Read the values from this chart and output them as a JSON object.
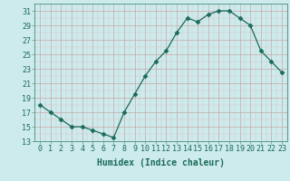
{
  "x": [
    0,
    1,
    2,
    3,
    4,
    5,
    6,
    7,
    8,
    9,
    10,
    11,
    12,
    13,
    14,
    15,
    16,
    17,
    18,
    19,
    20,
    21,
    22,
    23
  ],
  "y": [
    18,
    17,
    16,
    15,
    15,
    14.5,
    14,
    13.5,
    17,
    19.5,
    22,
    24,
    25.5,
    28,
    30,
    29.5,
    30.5,
    31,
    31,
    30,
    29,
    25.5,
    24,
    22.5
  ],
  "line_color": "#1a6b5a",
  "marker": "D",
  "marker_size": 2.5,
  "bg_color": "#cdeaec",
  "xlabel": "Humidex (Indice chaleur)",
  "ylim": [
    13,
    32
  ],
  "yticks": [
    13,
    15,
    17,
    19,
    21,
    23,
    25,
    27,
    29,
    31
  ],
  "xticks": [
    0,
    1,
    2,
    3,
    4,
    5,
    6,
    7,
    8,
    9,
    10,
    11,
    12,
    13,
    14,
    15,
    16,
    17,
    18,
    19,
    20,
    21,
    22,
    23
  ],
  "xlabel_fontsize": 7,
  "tick_fontsize": 6
}
